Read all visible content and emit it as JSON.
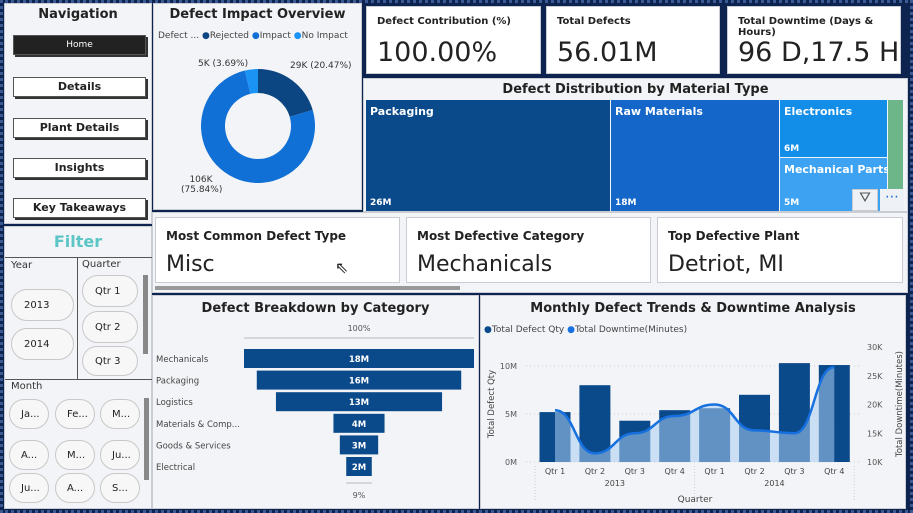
{
  "navigation": {
    "title": "Navigation",
    "items": [
      {
        "label": "Home",
        "active": true
      },
      {
        "label": "Details"
      },
      {
        "label": "Plant Details"
      },
      {
        "label": "Insights"
      },
      {
        "label": "Key Takeaways"
      }
    ]
  },
  "filter": {
    "title": "Filter",
    "year": {
      "label": "Year",
      "options": [
        "2013",
        "2014"
      ]
    },
    "quarter": {
      "label": "Quarter",
      "options": [
        "Qtr 1",
        "Qtr 2",
        "Qtr 3"
      ]
    },
    "month": {
      "label": "Month",
      "options": [
        "Ja...",
        "Fe...",
        "M...",
        "A...",
        "M...",
        "Ju...",
        "Ju...",
        "A...",
        "S..."
      ]
    }
  },
  "donut": {
    "title": "Defect Impact Overview",
    "legend_title": "Defect ...",
    "slices": [
      {
        "name": "Rejected",
        "label": "29K (20.47%)",
        "pct": 20.47,
        "color": "#0b4683"
      },
      {
        "name": "Impact",
        "label": "106K (75.84%)",
        "pct": 75.84,
        "color": "#1170d6"
      },
      {
        "name": "No Impact",
        "label": "5K (3.69%)",
        "pct": 3.69,
        "color": "#1a93f5"
      }
    ]
  },
  "kpis": [
    {
      "label": "Defect Contribution (%)",
      "value": "100.00%"
    },
    {
      "label": "Total Defects",
      "value": "56.01M"
    },
    {
      "label": "Total Downtime (Days & Hours)",
      "value": "96 D,17.5 H"
    }
  ],
  "treemap": {
    "title": "Defect Distribution by Material Type",
    "items": [
      {
        "name": "Packaging",
        "value": "26M",
        "color": "#0b4a8a"
      },
      {
        "name": "Raw Materials",
        "value": "18M",
        "color": "#1467c8"
      },
      {
        "name": "Electronics",
        "value": "6M",
        "color": "#128ee8"
      },
      {
        "name": "Mechanical Parts",
        "value": "5M",
        "color": "#3da2f2"
      }
    ],
    "other_color": "#6cb68a"
  },
  "cards": [
    {
      "label": "Most Common Defect Type",
      "value": "Misc"
    },
    {
      "label": "Most Defective Category",
      "value": "Mechanicals"
    },
    {
      "label": "Top Defective Plant",
      "value": "Detriot, MI"
    }
  ],
  "chart_data": [
    {
      "type": "bar",
      "title": "Defect Breakdown by Category",
      "top_label": "100%",
      "bottom_label": "9%",
      "categories": [
        "Mechanicals",
        "Packaging",
        "Logistics",
        "Materials & Comp...",
        "Goods & Services",
        "Electrical"
      ],
      "values": [
        18,
        16,
        13,
        4,
        3,
        2
      ],
      "value_labels": [
        "18M",
        "16M",
        "13M",
        "4M",
        "3M",
        "2M"
      ],
      "color": "#0b4a8a"
    },
    {
      "type": "bar",
      "title": "Monthly Defect Trends & Downtime Analysis",
      "xlabel": "Quarter",
      "ylabel": "Total Defect Qty",
      "y2label": "Total Downtime(Minutes)",
      "categories": [
        "Qtr 1",
        "Qtr 2",
        "Qtr 3",
        "Qtr 4",
        "Qtr 1",
        "Qtr 2",
        "Qtr 3",
        "Qtr 4"
      ],
      "years": [
        "2013",
        "2014"
      ],
      "yticks": [
        "0M",
        "5M",
        "10M"
      ],
      "y2ticks": [
        "10K",
        "15K",
        "20K",
        "25K",
        "30K"
      ],
      "ylim": [
        0,
        10
      ],
      "y2lim": [
        10,
        30
      ],
      "series": [
        {
          "name": "Total Defect Qty",
          "type": "bar",
          "values": [
            5.2,
            8.0,
            4.3,
            5.4,
            5.6,
            7.0,
            10.3,
            10.1
          ],
          "color": "#0b4a8a"
        },
        {
          "name": "Total Downtime(Minutes)",
          "type": "line",
          "values": [
            19,
            11.5,
            15,
            18,
            20,
            15.5,
            15,
            26.5
          ],
          "color": "#1670e0"
        }
      ]
    }
  ]
}
